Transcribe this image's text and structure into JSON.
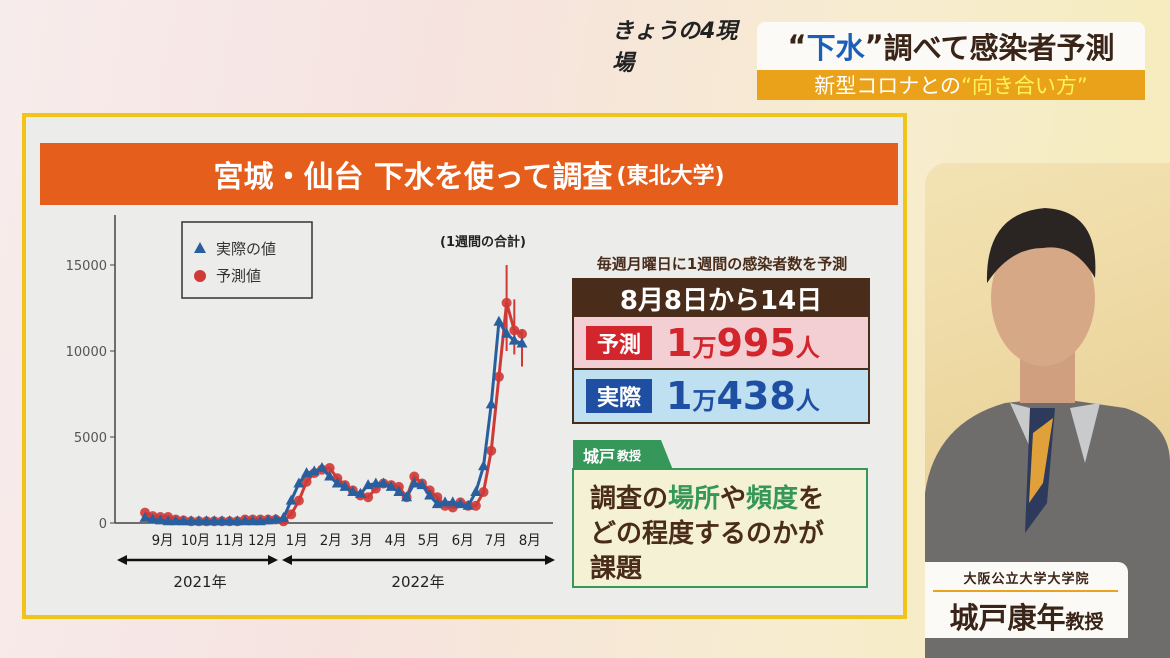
{
  "header": {
    "logo_text": "きょうの4現場",
    "title_quote_open": "“",
    "title_highlight": "下水",
    "title_quote_close": "”",
    "title_rest": "調べて感染者予測",
    "subtitle_prefix": "新型コロナとの",
    "subtitle_highlight": "“向き合い方”"
  },
  "panel": {
    "title": "宮城・仙台 下水を使って調査",
    "title_source": "(東北大学)"
  },
  "chart_data": {
    "type": "line",
    "annotation": "(1週間の合計)",
    "ylim": [
      0,
      17500
    ],
    "yticks": [
      0,
      5000,
      10000,
      15000
    ],
    "ytick_labels": [
      "0",
      "5000",
      "10000",
      "15000"
    ],
    "xticks": [
      {
        "date": "2021-09-15",
        "label": "9月"
      },
      {
        "date": "2021-10-15",
        "label": "10月"
      },
      {
        "date": "2021-11-15",
        "label": "11月"
      },
      {
        "date": "2021-12-15",
        "label": "12月"
      },
      {
        "date": "2022-01-15",
        "label": "1月"
      },
      {
        "date": "2022-02-15",
        "label": "2月"
      },
      {
        "date": "2022-03-15",
        "label": "3月"
      },
      {
        "date": "2022-04-15",
        "label": "4月"
      },
      {
        "date": "2022-05-15",
        "label": "5月"
      },
      {
        "date": "2022-06-15",
        "label": "6月"
      },
      {
        "date": "2022-07-15",
        "label": "7月"
      },
      {
        "date": "2022-08-15",
        "label": "8月"
      }
    ],
    "year_labels": [
      "2021年",
      "2022年"
    ],
    "legend_position": "top-left",
    "x": [
      "2021-08-30",
      "2021-09-06",
      "2021-09-13",
      "2021-09-20",
      "2021-09-27",
      "2021-10-04",
      "2021-10-11",
      "2021-10-18",
      "2021-10-25",
      "2021-11-01",
      "2021-11-08",
      "2021-11-15",
      "2021-11-22",
      "2021-11-29",
      "2021-12-06",
      "2021-12-13",
      "2021-12-20",
      "2021-12-27",
      "2022-01-03",
      "2022-01-10",
      "2022-01-17",
      "2022-01-24",
      "2022-01-31",
      "2022-02-07",
      "2022-02-14",
      "2022-02-21",
      "2022-02-28",
      "2022-03-07",
      "2022-03-14",
      "2022-03-21",
      "2022-03-28",
      "2022-04-04",
      "2022-04-11",
      "2022-04-18",
      "2022-04-25",
      "2022-05-02",
      "2022-05-09",
      "2022-05-16",
      "2022-05-23",
      "2022-05-30",
      "2022-06-06",
      "2022-06-13",
      "2022-06-20",
      "2022-06-27",
      "2022-07-04",
      "2022-07-11",
      "2022-07-18",
      "2022-07-25",
      "2022-08-01",
      "2022-08-08"
    ],
    "series": [
      {
        "name": "実際の値",
        "marker": "triangle",
        "color": "#2a5f9e",
        "values": [
          300,
          200,
          150,
          100,
          100,
          100,
          100,
          100,
          100,
          100,
          100,
          100,
          100,
          100,
          100,
          100,
          150,
          200,
          300,
          1300,
          2300,
          2900,
          3000,
          3200,
          2700,
          2300,
          2100,
          1800,
          1700,
          2200,
          2300,
          2300,
          2100,
          1800,
          1500,
          2300,
          2200,
          1600,
          1100,
          1200,
          1200,
          1100,
          1000,
          1800,
          3300,
          6900,
          11700,
          11000,
          10600,
          10438
        ]
      },
      {
        "name": "予測値",
        "marker": "circle",
        "color": "#cf3a36",
        "values": [
          600,
          400,
          350,
          350,
          200,
          150,
          100,
          100,
          100,
          100,
          100,
          100,
          100,
          200,
          200,
          200,
          200,
          200,
          100,
          500,
          1300,
          2400,
          2900,
          3100,
          3200,
          2600,
          2200,
          1900,
          1600,
          1500,
          2000,
          2300,
          2200,
          2100,
          1500,
          2700,
          2300,
          1900,
          1500,
          1000,
          900,
          1200,
          1000,
          1000,
          1800,
          4200,
          8500,
          12800,
          11200,
          10995
        ],
        "error_bars": [
          {
            "date": "2022-07-25",
            "low": 10000,
            "high": 15000
          },
          {
            "date": "2022-08-01",
            "low": 9800,
            "high": 13000
          },
          {
            "date": "2022-08-08",
            "low": 9100,
            "high": 11200
          }
        ]
      }
    ]
  },
  "stats": {
    "caption": "毎週月曜日に1週間の感染者数を予測",
    "period": "8月8日から14日",
    "predicted_label": "予測",
    "predicted_man": "1",
    "predicted_man_unit": "万",
    "predicted_rest": "995",
    "actual_label": "実際",
    "actual_man": "1",
    "actual_man_unit": "万",
    "actual_rest": "438",
    "person_unit": "人"
  },
  "comment": {
    "speaker": "城戸",
    "speaker_title": "教授",
    "parts": [
      "調査の",
      "場所",
      "や",
      "頻度",
      "を",
      "どの程度するのかが",
      "課題"
    ]
  },
  "nameplate": {
    "affiliation": "大阪公立大学大学院",
    "name": "城戸康年",
    "title": "教授"
  }
}
